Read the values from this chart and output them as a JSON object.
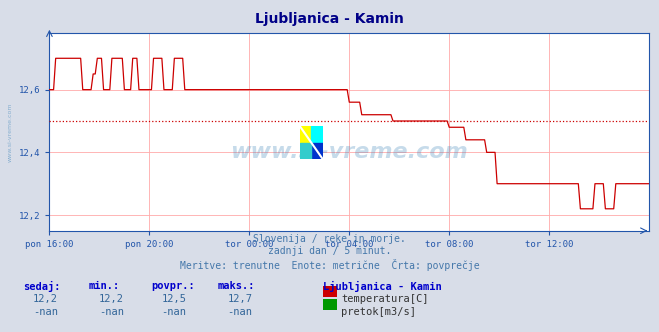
{
  "title": "Ljubljanica - Kamin",
  "subtitle1": "Slovenija / reke in morje.",
  "subtitle2": "zadnji dan / 5 minut.",
  "subtitle3": "Meritve: trenutne  Enote: metrične  Črta: povprečje",
  "xlabel_ticks": [
    "pon 16:00",
    "pon 20:00",
    "tor 00:00",
    "tor 04:00",
    "tor 08:00",
    "tor 12:00"
  ],
  "ylabel_ticks": [
    "12,2",
    "12,4",
    "12,6"
  ],
  "ylim": [
    12.15,
    12.78
  ],
  "xlim": [
    0,
    288
  ],
  "ytick_vals": [
    12.2,
    12.4,
    12.6
  ],
  "xtick_positions": [
    0,
    48,
    96,
    144,
    192,
    240
  ],
  "avg_line": 12.5,
  "background_color": "#d8dde8",
  "plot_bg_color": "#ffffff",
  "grid_color": "#ffaaaa",
  "avg_line_color": "#cc0000",
  "line_color": "#cc0000",
  "axis_color": "#2255aa",
  "watermark": "www.si-vreme.com",
  "watermark_color": "#4488bb",
  "watermark_alpha": 0.3,
  "title_color": "#000088",
  "subtitle_color": "#4477aa",
  "table_header_color": "#0000cc",
  "table_value_color": "#336699",
  "legend_label1": "temperatura[C]",
  "legend_label2": "pretok[m3/s]",
  "legend_color1": "#cc0000",
  "legend_color2": "#009900",
  "legend_title": "Ljubljanica - Kamin",
  "sedaj_label": "sedaj:",
  "min_label": "min.:",
  "povpr_label": "povpr.:",
  "maks_label": "maks.:",
  "sedaj_val": "12,2",
  "min_val": "12,2",
  "povpr_val": "12,5",
  "maks_val": "12,7",
  "sedaj_val2": "-nan",
  "min_val2": "-nan",
  "povpr_val2": "-nan",
  "maks_val2": "-nan"
}
